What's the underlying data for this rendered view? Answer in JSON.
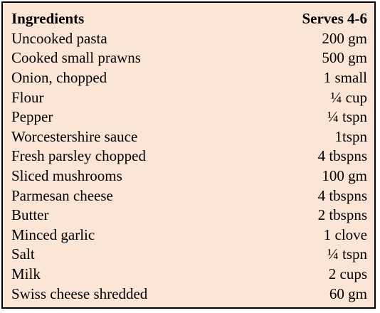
{
  "table": {
    "header": {
      "name": "Ingredients",
      "serves": "Serves 4-6"
    },
    "rows": [
      {
        "name": "Uncooked pasta",
        "qty": "200 gm"
      },
      {
        "name": "Cooked small prawns",
        "qty": "500 gm"
      },
      {
        "name": "Onion, chopped",
        "qty": "1 small"
      },
      {
        "name": "Flour",
        "qty": "¼ cup"
      },
      {
        "name": "Pepper",
        "qty": "¼ tspn"
      },
      {
        "name": "Worcestershire sauce",
        "qty": "1tspn"
      },
      {
        "name": "Fresh parsley chopped",
        "qty": "4 tbspns"
      },
      {
        "name": "Sliced mushrooms",
        "qty": "100 gm"
      },
      {
        "name": "Parmesan cheese",
        "qty": "4 tbspns"
      },
      {
        "name": "Butter",
        "qty": "2 tbspns"
      },
      {
        "name": "Minced garlic",
        "qty": "1 clove"
      },
      {
        "name": "Salt",
        "qty": "¼ tspn"
      },
      {
        "name": "Milk",
        "qty": "2 cups"
      },
      {
        "name": "Swiss cheese shredded",
        "qty": "60 gm"
      }
    ]
  },
  "colors": {
    "background": "#fbe5d6",
    "border": "#000000",
    "text": "#000000"
  }
}
